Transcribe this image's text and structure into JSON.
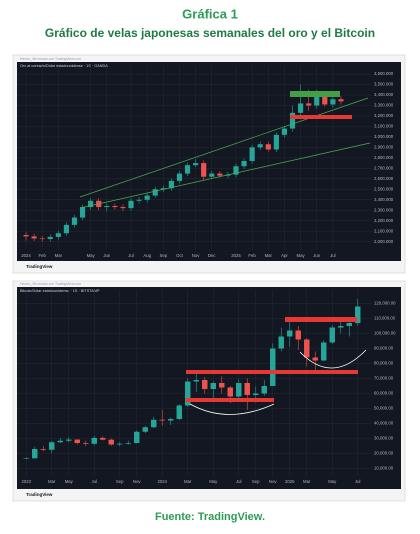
{
  "header": {
    "title": "Gráfica 1",
    "subtitle": "Gráfico de velas japonesas semanales del oro y el Bitcoin"
  },
  "chart_data": [
    {
      "type": "candlestick",
      "title": "Oro al contado/Dólar estadounidense · 1S · OANDA",
      "caption": "Hector_JM creado con TradingView.com",
      "brand": "TradingView",
      "categories": [
        "2024",
        null,
        "Feb",
        null,
        "Mar",
        null,
        null,
        null,
        "May",
        null,
        "Jun",
        null,
        null,
        "Jul",
        null,
        "Aug",
        null,
        "Sep",
        null,
        "Oct",
        null,
        "Nov",
        null,
        "Dec",
        null,
        null,
        "2025",
        null,
        "Feb",
        null,
        "Mar",
        null,
        "Apr",
        null,
        "May",
        null,
        "Jun",
        null,
        "Jul",
        null
      ],
      "open": [
        2063,
        2050,
        2030,
        2025,
        2045,
        2080,
        2160,
        2230,
        2330,
        2390,
        2330,
        2340,
        2330,
        2320,
        2390,
        2400,
        2440,
        2500,
        2510,
        2580,
        2650,
        2730,
        2750,
        2620,
        2650,
        2630,
        2640,
        2720,
        2770,
        2900,
        2930,
        2880,
        3020,
        3080,
        3230,
        3320,
        3300,
        3390,
        3310,
        3360
      ],
      "high": [
        2088,
        2075,
        2055,
        2070,
        2105,
        2185,
        2255,
        2355,
        2415,
        2415,
        2365,
        2365,
        2355,
        2415,
        2425,
        2465,
        2525,
        2535,
        2605,
        2675,
        2755,
        2790,
        2775,
        2675,
        2675,
        2665,
        2745,
        2795,
        2925,
        2955,
        2955,
        3045,
        3105,
        3300,
        3500,
        3450,
        3450,
        3430,
        3400,
        3390
      ],
      "low": [
        2010,
        2005,
        2000,
        2000,
        2020,
        2055,
        2135,
        2205,
        2305,
        2300,
        2290,
        2305,
        2290,
        2295,
        2365,
        2375,
        2420,
        2475,
        2485,
        2555,
        2625,
        2710,
        2590,
        2600,
        2610,
        2605,
        2615,
        2695,
        2745,
        2875,
        2860,
        2855,
        2995,
        3050,
        3200,
        3250,
        3270,
        3290,
        3280,
        3310
      ],
      "close": [
        2050,
        2030,
        2025,
        2045,
        2080,
        2160,
        2230,
        2330,
        2390,
        2330,
        2340,
        2330,
        2320,
        2390,
        2400,
        2440,
        2500,
        2510,
        2580,
        2650,
        2730,
        2750,
        2620,
        2650,
        2630,
        2640,
        2720,
        2770,
        2900,
        2930,
        2880,
        3020,
        3080,
        3230,
        3320,
        3300,
        3390,
        3310,
        3360,
        3340
      ],
      "up_color": "#26a69a",
      "down_color": "#ef5350",
      "grid": true,
      "ylim": [
        1920,
        3620
      ],
      "yticks": [
        {
          "value": 2000,
          "label": "2,000.000"
        },
        {
          "value": 2100,
          "label": "2,100.000"
        },
        {
          "value": 2200,
          "label": "2,200.000"
        },
        {
          "value": 2300,
          "label": "2,300.000"
        },
        {
          "value": 2400,
          "label": "2,400.000"
        },
        {
          "value": 2500,
          "label": "2,500.000"
        },
        {
          "value": 2600,
          "label": "2,600.000"
        },
        {
          "value": 2700,
          "label": "2,700.000"
        },
        {
          "value": 2800,
          "label": "2,800.000"
        },
        {
          "value": 2900,
          "label": "2,900.000"
        },
        {
          "value": 3000,
          "label": "3,000.000"
        },
        {
          "value": 3100,
          "label": "3,100.000"
        },
        {
          "value": 3200,
          "label": "3,200.000"
        },
        {
          "value": 3300,
          "label": "3,300.000"
        },
        {
          "value": 3400,
          "label": "3,400.000"
        },
        {
          "value": 3500,
          "label": "3,500.000"
        },
        {
          "value": 3600,
          "label": "3,600.000"
        }
      ]
    },
    {
      "type": "candlestick",
      "title": "Bitcoin/Dólar estadounidense · 1S · BITSTAMP",
      "caption": "Hector_JM creado con TradingView.com",
      "brand": "TradingView",
      "categories": [
        "2023",
        null,
        null,
        "Mar",
        null,
        "May",
        null,
        null,
        "Jul",
        null,
        null,
        "Sep",
        null,
        "Nov",
        null,
        null,
        "2024",
        null,
        null,
        "Mar",
        null,
        null,
        "May",
        null,
        null,
        "Jul",
        null,
        "Sep",
        null,
        "Nov",
        null,
        "2025",
        null,
        "Mar",
        null,
        null,
        "May",
        null,
        null,
        "Jul"
      ],
      "open": [
        16500,
        16800,
        23000,
        22500,
        27500,
        28500,
        29300,
        27000,
        26500,
        30400,
        29200,
        26000,
        26500,
        27000,
        34500,
        37500,
        42500,
        42000,
        43000,
        52000,
        68000,
        69000,
        63000,
        67000,
        64000,
        58000,
        67000,
        59000,
        60000,
        65000,
        90000,
        98000,
        102000,
        96000,
        84000,
        82000,
        94000,
        104000,
        105000,
        107000
      ],
      "high": [
        17500,
        24500,
        25000,
        28500,
        30500,
        31000,
        29500,
        28500,
        31800,
        31500,
        30000,
        27500,
        28500,
        35500,
        38500,
        44500,
        49000,
        44000,
        53000,
        70000,
        73800,
        71000,
        68000,
        71500,
        65000,
        69500,
        70000,
        64500,
        69000,
        93500,
        104000,
        109000,
        105000,
        97000,
        88000,
        95500,
        105500,
        110000,
        110500,
        123000
      ],
      "low": [
        16300,
        16700,
        21500,
        20000,
        27000,
        27500,
        26000,
        24800,
        25500,
        28800,
        25200,
        24900,
        26000,
        26800,
        33500,
        37000,
        38500,
        39000,
        42000,
        51000,
        61000,
        60000,
        56500,
        60000,
        53500,
        57000,
        49000,
        54000,
        58500,
        65000,
        88000,
        91000,
        89000,
        78000,
        74500,
        81500,
        93000,
        100000,
        98000,
        105000
      ],
      "close": [
        16800,
        23000,
        22500,
        27500,
        28500,
        29300,
        27000,
        26500,
        30400,
        29200,
        26000,
        26500,
        27000,
        34500,
        37500,
        42500,
        42000,
        43000,
        52000,
        68000,
        69000,
        63000,
        67000,
        64000,
        58000,
        67000,
        59000,
        60000,
        65000,
        90000,
        98000,
        102000,
        96000,
        84000,
        82000,
        94000,
        104000,
        105000,
        107000,
        118000
      ],
      "up_color": "#26a69a",
      "down_color": "#ef5350",
      "grid": true,
      "ylim": [
        5000,
        125000
      ],
      "yticks": [
        {
          "value": 10000,
          "label": "10,000.00"
        },
        {
          "value": 20000,
          "label": "20,000.00"
        },
        {
          "value": 30000,
          "label": "30,000.00"
        },
        {
          "value": 40000,
          "label": "40,000.00"
        },
        {
          "value": 50000,
          "label": "50,000.00"
        },
        {
          "value": 60000,
          "label": "60,000.00"
        },
        {
          "value": 70000,
          "label": "70,000.00"
        },
        {
          "value": 80000,
          "label": "80,000.00"
        },
        {
          "value": 90000,
          "label": "90,000.00"
        },
        {
          "value": 100000,
          "label": "100,000.00"
        },
        {
          "value": 110000,
          "label": "110,000.00"
        },
        {
          "value": 120000,
          "label": "120,000.00"
        }
      ]
    }
  ],
  "footer": "Fuente: TradingView."
}
